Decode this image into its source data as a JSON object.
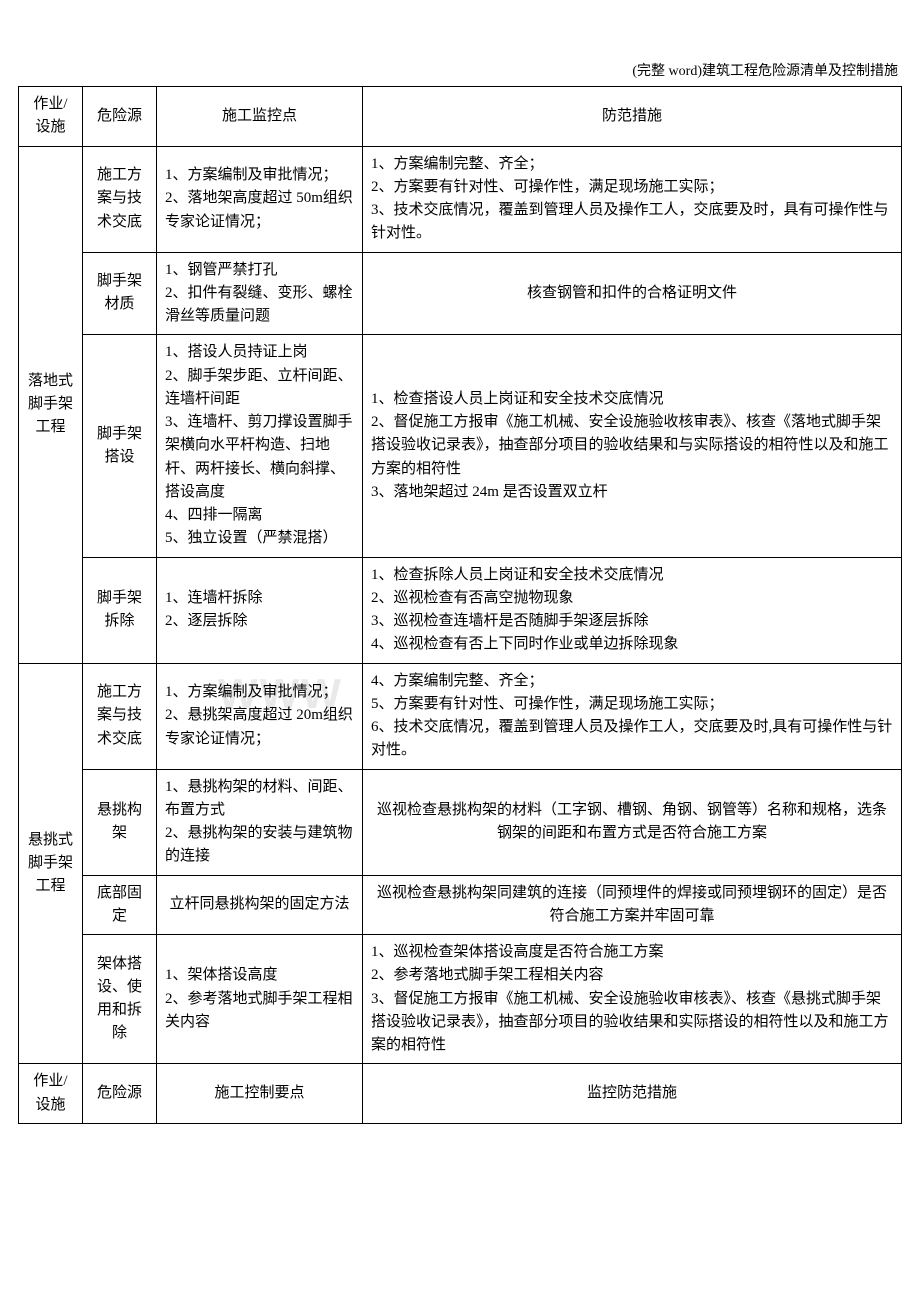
{
  "caption": "(完整 word)建筑工程危险源清单及控制措施",
  "watermark": "WWW",
  "header": {
    "col1": "作业/设施",
    "col2": "危险源",
    "col3": "施工监控点",
    "col4": "防范措施"
  },
  "groupA": {
    "title": "落地式脚手架工程",
    "rows": [
      {
        "hazard": "施工方案与技术交底",
        "control": "1、方案编制及审批情况；\n2、落地架高度超过 50m组织专家论证情况；",
        "measure": "1、方案编制完整、齐全；\n2、方案要有针对性、可操作性，满足现场施工实际；\n3、技术交底情况，覆盖到管理人员及操作工人，交底要及时，具有可操作性与针对性。"
      },
      {
        "hazard": "脚手架材质",
        "control": "1、钢管严禁打孔\n2、扣件有裂缝、变形、螺栓滑丝等质量问题",
        "measure": "核查钢管和扣件的合格证明文件",
        "measure_center": true
      },
      {
        "hazard": "脚手架搭设",
        "control": "1、搭设人员持证上岗\n2、脚手架步距、立杆间距、连墙杆间距\n3、连墙杆、剪刀撑设置脚手架横向水平杆构造、扫地杆、两杆接长、横向斜撑、搭设高度\n4、四排一隔离\n5、独立设置（严禁混搭）",
        "measure": "1、检查搭设人员上岗证和安全技术交底情况\n2、督促施工方报审《施工机械、安全设施验收核审表》、核查《落地式脚手架搭设验收记录表》，抽查部分项目的验收结果和与实际搭设的相符性以及和施工方案的相符性\n3、落地架超过 24m 是否设置双立杆"
      },
      {
        "hazard": "脚手架拆除",
        "control": "1、连墙杆拆除\n2、逐层拆除",
        "measure": "1、检查拆除人员上岗证和安全技术交底情况\n2、巡视检查有否高空抛物现象\n3、巡视检查连墙杆是否随脚手架逐层拆除\n4、巡视检查有否上下同时作业或单边拆除现象"
      }
    ]
  },
  "groupB": {
    "title": "悬挑式脚手架工程",
    "rows": [
      {
        "hazard": "施工方案与技术交底",
        "control": "1、方案编制及审批情况；\n2、悬挑架高度超过 20m组织专家论证情况；",
        "measure": "4、方案编制完整、齐全；\n5、方案要有针对性、可操作性，满足现场施工实际；\n6、技术交底情况，覆盖到管理人员及操作工人，交底要及时,具有可操作性与针对性。"
      },
      {
        "hazard": "悬挑构架",
        "control": "1、悬挑构架的材料、间距、布置方式\n2、悬挑构架的安装与建筑物的连接",
        "measure": "巡视检查悬挑构架的材料（工字钢、槽钢、角钢、钢管等）名称和规格，选条钢架的间距和布置方式是否符合施工方案",
        "measure_center": true
      },
      {
        "hazard": "底部固定",
        "control": "立杆同悬挑构架的固定方法",
        "control_center": true,
        "measure": "巡视检查悬挑构架同建筑的连接（同预埋件的焊接或同预埋钢环的固定）是否符合施工方案并牢固可靠",
        "measure_center": true
      },
      {
        "hazard": "架体搭设、使用和拆除",
        "control": "1、架体搭设高度\n2、参考落地式脚手架工程相关内容",
        "measure": "1、巡视检查架体搭设高度是否符合施工方案\n2、参考落地式脚手架工程相关内容\n3、督促施工方报审《施工机械、安全设施验收审核表》、核查《悬挑式脚手架搭设验收记录表》，抽查部分项目的验收结果和实际搭设的相符性以及和施工方案的相符性"
      }
    ]
  },
  "footer": {
    "col1": "作业/设施",
    "col2": "危险源",
    "col3": "施工控制要点",
    "col4": "监控防范措施"
  }
}
